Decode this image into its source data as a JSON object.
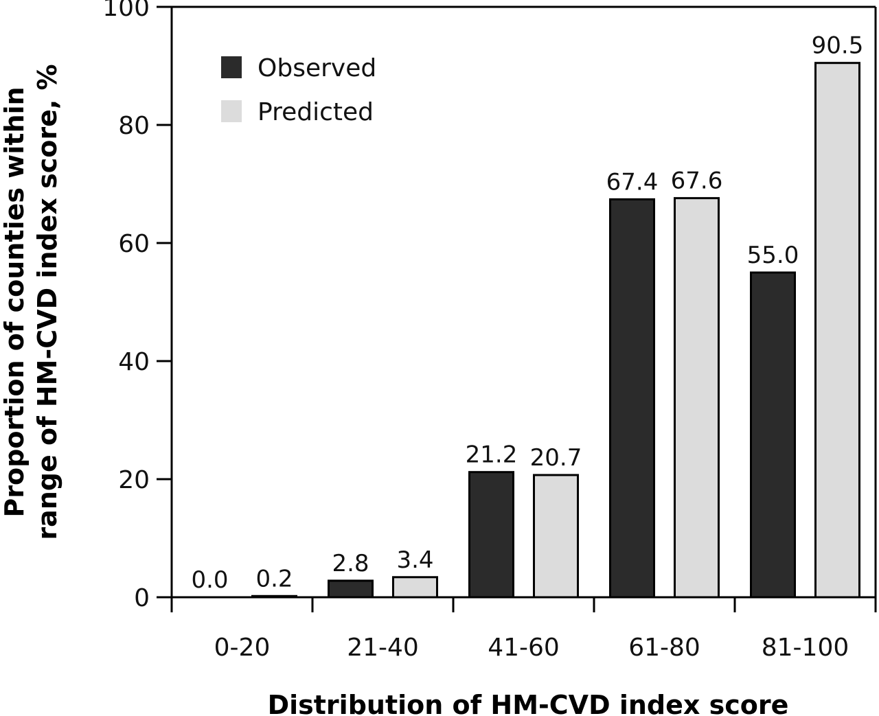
{
  "chart_data": {
    "type": "bar",
    "categories": [
      "0-20",
      "21-40",
      "41-60",
      "61-80",
      "81-100"
    ],
    "series": [
      {
        "name": "Observed",
        "color": "#2b2b2b",
        "values": [
          0.0,
          2.8,
          21.2,
          67.4,
          55.0
        ],
        "labels": [
          "0.0",
          "2.8",
          "21.2",
          "67.4",
          "55.0"
        ]
      },
      {
        "name": "Predicted",
        "color": "#dcdcdc",
        "values": [
          0.2,
          3.4,
          20.7,
          67.6,
          90.5
        ],
        "labels": [
          "0.2",
          "3.4",
          "20.7",
          "67.6",
          "90.5"
        ]
      }
    ],
    "xlabel": "Distribution of HM-CVD index score",
    "ylabel_lines": [
      "Proportion of counties within",
      "range of HM-CVD index score, %"
    ],
    "ylim": [
      0,
      100
    ],
    "yticks": [
      "0",
      "20",
      "40",
      "60",
      "80",
      "100"
    ],
    "legend_position": "top-left",
    "grid": false
  }
}
